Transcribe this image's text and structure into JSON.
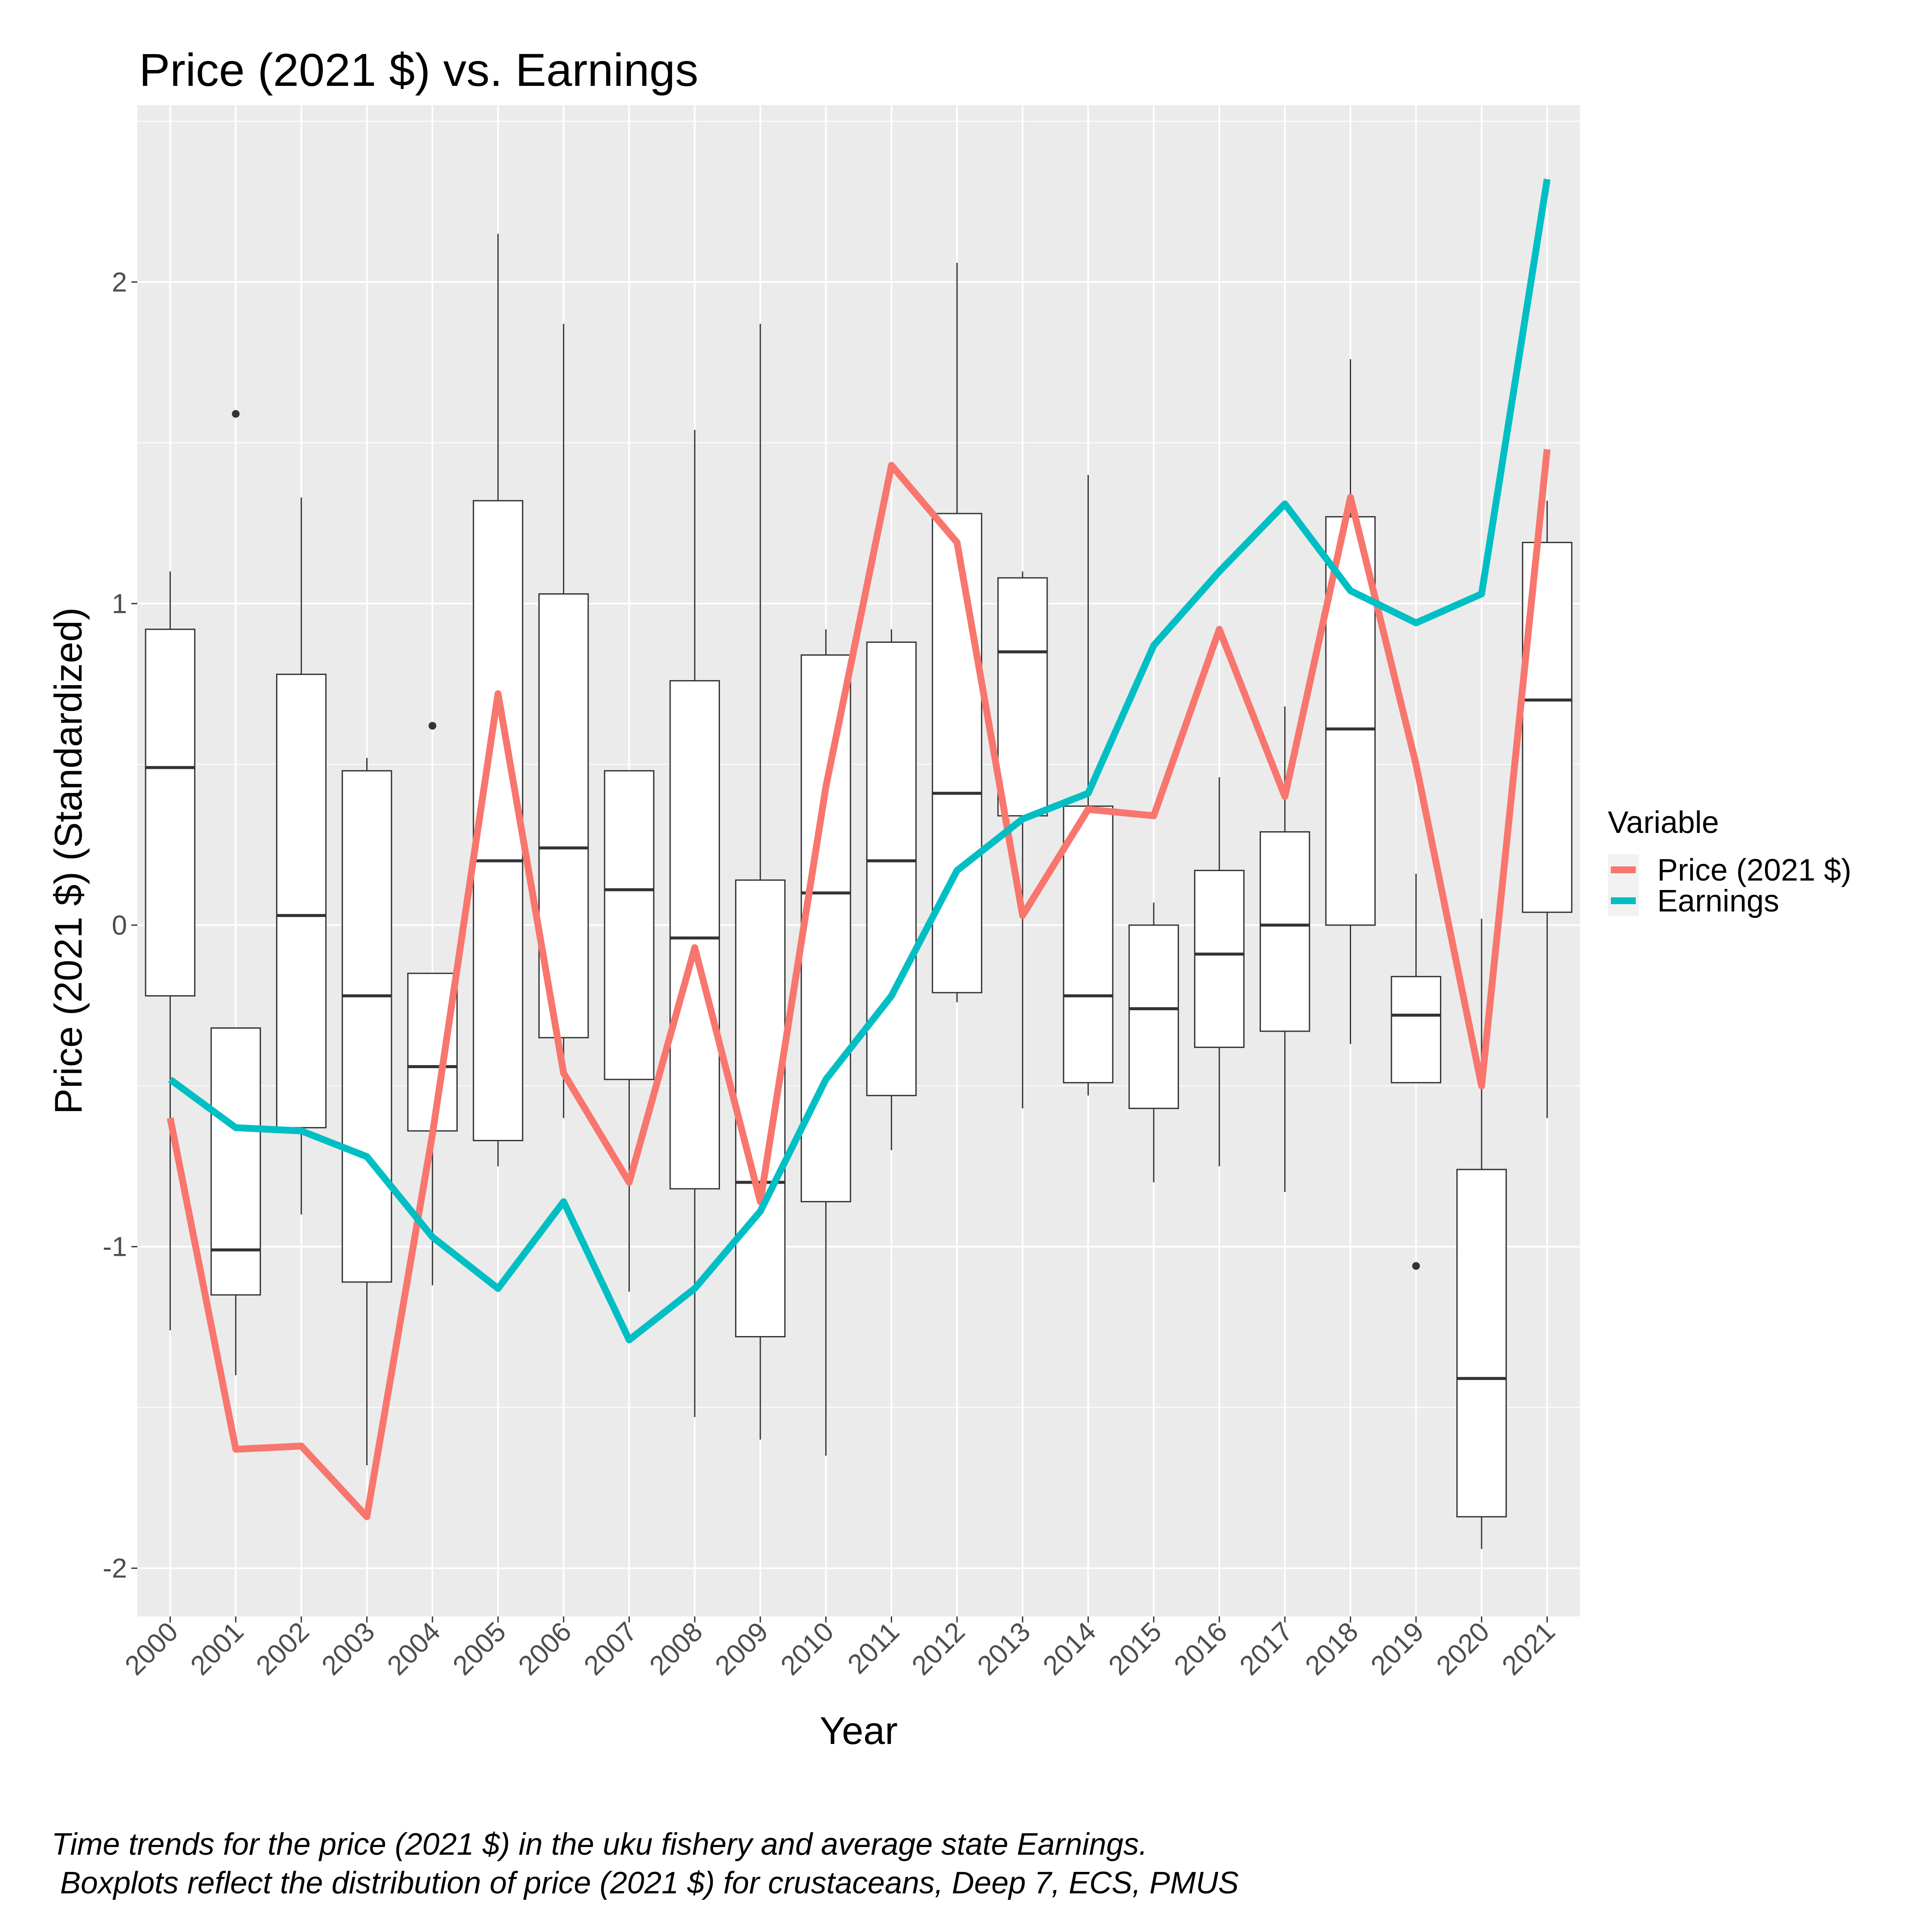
{
  "chart_data": {
    "type": "boxplot+line",
    "title": "Price (2021 $) vs. Earnings",
    "xlabel": "Year",
    "ylabel": "Price (2021 $) (Standardized)",
    "ylim": [
      -2.15,
      2.55
    ],
    "y_ticks": [
      -2,
      -1,
      0,
      1,
      2
    ],
    "grid": true,
    "background": "#ebebeb",
    "legend": {
      "title": "Variable",
      "position": "right",
      "entries": [
        {
          "label": "Price (2021 $)",
          "color": "#f8766d"
        },
        {
          "label": "Earnings",
          "color": "#00bfc4"
        }
      ]
    },
    "categories": [
      "2000",
      "2001",
      "2002",
      "2003",
      "2004",
      "2005",
      "2006",
      "2007",
      "2008",
      "2009",
      "2010",
      "2011",
      "2012",
      "2013",
      "2014",
      "2015",
      "2016",
      "2017",
      "2018",
      "2019",
      "2020",
      "2021"
    ],
    "boxes": [
      {
        "year": "2000",
        "low": -1.26,
        "q1": -0.22,
        "median": 0.49,
        "q3": 0.92,
        "high": 1.1,
        "outliers": []
      },
      {
        "year": "2001",
        "low": -1.4,
        "q1": -1.15,
        "median": -1.01,
        "q3": -0.32,
        "high": -0.32,
        "outliers": [
          1.59
        ]
      },
      {
        "year": "2002",
        "low": -0.9,
        "q1": -0.63,
        "median": 0.03,
        "q3": 0.78,
        "high": 1.33,
        "outliers": []
      },
      {
        "year": "2003",
        "low": -1.68,
        "q1": -1.11,
        "median": -0.22,
        "q3": 0.48,
        "high": 0.52,
        "outliers": []
      },
      {
        "year": "2004",
        "low": -1.12,
        "q1": -0.64,
        "median": -0.44,
        "q3": -0.15,
        "high": -0.15,
        "outliers": [
          0.62
        ]
      },
      {
        "year": "2005",
        "low": -0.75,
        "q1": -0.67,
        "median": 0.2,
        "q3": 1.32,
        "high": 2.15,
        "outliers": []
      },
      {
        "year": "2006",
        "low": -0.6,
        "q1": -0.35,
        "median": 0.24,
        "q3": 1.03,
        "high": 1.87,
        "outliers": []
      },
      {
        "year": "2007",
        "low": -1.14,
        "q1": -0.48,
        "median": 0.11,
        "q3": 0.48,
        "high": 0.48,
        "outliers": []
      },
      {
        "year": "2008",
        "low": -1.53,
        "q1": -0.82,
        "median": -0.04,
        "q3": 0.76,
        "high": 1.54,
        "outliers": []
      },
      {
        "year": "2009",
        "low": -1.6,
        "q1": -1.28,
        "median": -0.8,
        "q3": 0.14,
        "high": 1.87,
        "outliers": []
      },
      {
        "year": "2010",
        "low": -1.65,
        "q1": -0.86,
        "median": 0.1,
        "q3": 0.84,
        "high": 0.92,
        "outliers": []
      },
      {
        "year": "2011",
        "low": -0.7,
        "q1": -0.53,
        "median": 0.2,
        "q3": 0.88,
        "high": 0.92,
        "outliers": []
      },
      {
        "year": "2012",
        "low": -0.24,
        "q1": -0.21,
        "median": 0.41,
        "q3": 1.28,
        "high": 2.06,
        "outliers": []
      },
      {
        "year": "2013",
        "low": -0.57,
        "q1": 0.34,
        "median": 0.85,
        "q3": 1.08,
        "high": 1.1,
        "outliers": []
      },
      {
        "year": "2014",
        "low": -0.53,
        "q1": -0.49,
        "median": -0.22,
        "q3": 0.37,
        "high": 1.4,
        "outliers": []
      },
      {
        "year": "2015",
        "low": -0.8,
        "q1": -0.57,
        "median": -0.26,
        "q3": 0.0,
        "high": 0.07,
        "outliers": []
      },
      {
        "year": "2016",
        "low": -0.75,
        "q1": -0.38,
        "median": -0.09,
        "q3": 0.17,
        "high": 0.46,
        "outliers": []
      },
      {
        "year": "2017",
        "low": -0.83,
        "q1": -0.33,
        "median": 0.0,
        "q3": 0.29,
        "high": 0.68,
        "outliers": []
      },
      {
        "year": "2018",
        "low": -0.37,
        "q1": 0.0,
        "median": 0.61,
        "q3": 1.27,
        "high": 1.76,
        "outliers": []
      },
      {
        "year": "2019",
        "low": -0.49,
        "q1": -0.49,
        "median": -0.28,
        "q3": -0.16,
        "high": 0.16,
        "outliers": [
          -1.06
        ]
      },
      {
        "year": "2020",
        "low": -1.94,
        "q1": -1.84,
        "median": -1.41,
        "q3": -0.76,
        "high": 0.02,
        "outliers": []
      },
      {
        "year": "2021",
        "low": -0.6,
        "q1": 0.04,
        "median": 0.7,
        "q3": 1.19,
        "high": 1.32,
        "outliers": []
      }
    ],
    "series": [
      {
        "name": "Price (2021 $)",
        "color": "#f8766d",
        "values": [
          -0.6,
          -1.63,
          -1.62,
          -1.84,
          -0.65,
          0.72,
          -0.46,
          -0.8,
          -0.07,
          -0.86,
          0.43,
          1.43,
          1.19,
          0.03,
          0.36,
          0.34,
          0.92,
          0.4,
          1.33,
          0.5,
          -0.5,
          1.48
        ]
      },
      {
        "name": "Earnings",
        "color": "#00bfc4",
        "values": [
          -0.48,
          -0.63,
          -0.64,
          -0.72,
          -0.97,
          -1.13,
          -0.86,
          -1.29,
          -1.13,
          -0.89,
          -0.48,
          -0.22,
          0.17,
          0.33,
          0.41,
          0.87,
          1.1,
          1.31,
          1.04,
          0.94,
          1.03,
          2.32
        ]
      }
    ],
    "caption": [
      "Time trends for the price (2021 $) in the uku fishery and average state Earnings.",
      " Boxplots reflect the distribution of price (2021 $) for crustaceans, Deep 7, ECS, PMUS"
    ]
  }
}
